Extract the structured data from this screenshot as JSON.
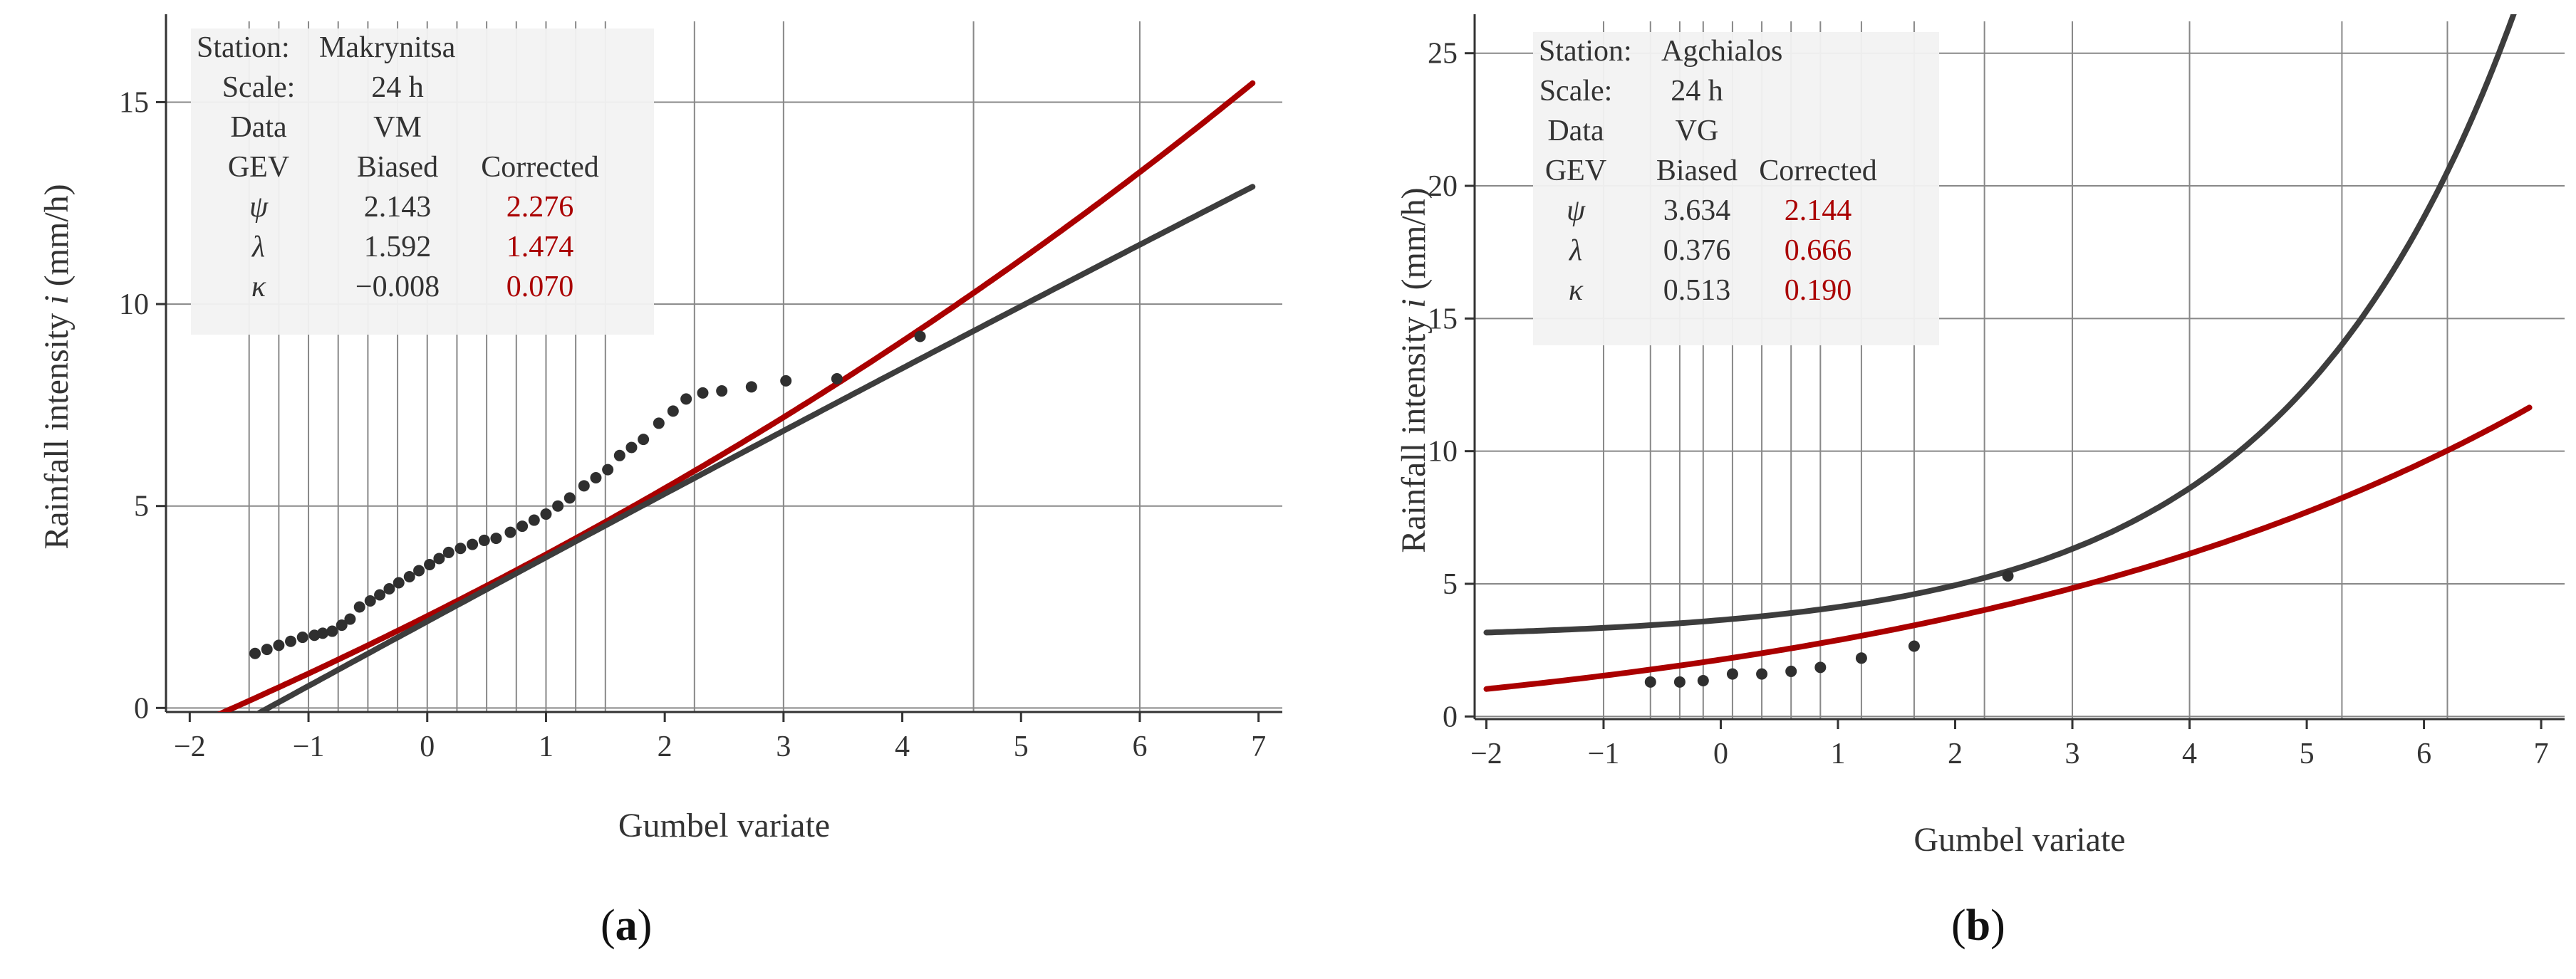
{
  "colors": {
    "biased": "#3d3d3d",
    "corrected": "#aa0000",
    "points": "#2f2f2f",
    "grid": "#888888",
    "axis": "#333333",
    "info_box": "#f2f2f2",
    "text": "#333333"
  },
  "chart_data": [
    {
      "type": "scatter",
      "panel_label": "a",
      "xlabel": "Gumbel variate",
      "ylabel_main": "Rainfall intensity ",
      "ylabel_var": "i",
      "ylabel_unit": " (mm/h)",
      "xlim": [
        -2.2,
        7.2
      ],
      "ylim": [
        -0.1,
        17.0
      ],
      "xticks": [
        -2,
        -1,
        0,
        1,
        2,
        3,
        4,
        5,
        6,
        7
      ],
      "xtick_labels": [
        "−2",
        "−1",
        "0",
        "1",
        "2",
        "3",
        "4",
        "5",
        "6",
        "7"
      ],
      "yticks": [
        0,
        5,
        10,
        15
      ],
      "ytick_labels": [
        "0",
        "5",
        "10",
        "15"
      ],
      "grid": true,
      "vertical_gridlines": [
        -1.5,
        -1.25,
        -1.0,
        -0.75,
        -0.5,
        -0.25,
        0,
        0.25,
        0.5,
        0.75,
        1.0,
        1.25,
        1.5,
        2.25,
        3.0,
        4.6,
        6.0
      ],
      "horizontal_gridlines": [
        0,
        5,
        10,
        15
      ],
      "info": {
        "station_label": "Station:",
        "station": "Makrynitsa",
        "scale_label": "Scale:",
        "scale": "24 h",
        "data_label": "Data",
        "data": "VM",
        "model_label": "GEV",
        "biased_header": "Biased",
        "corrected_header": "Corrected",
        "params": [
          {
            "symbol": "ψ",
            "biased": "2.143",
            "corrected": "2.276"
          },
          {
            "symbol": "λ",
            "biased": "1.592",
            "corrected": "1.474"
          },
          {
            "symbol": "κ",
            "biased": "−0.008",
            "corrected": "0.070"
          }
        ]
      },
      "series": [
        {
          "name": "Corrected",
          "kind": "gev_curve",
          "psi": 2.276,
          "lambda": 1.474,
          "kappa": 0.07,
          "x_range": [
            -2.0,
            6.95
          ]
        },
        {
          "name": "Biased",
          "kind": "gev_curve",
          "psi": 2.143,
          "lambda": 1.592,
          "kappa": -0.008,
          "x_range": [
            -2.0,
            6.95
          ]
        },
        {
          "name": "Observations",
          "kind": "points",
          "x": [
            -1.45,
            -1.35,
            -1.25,
            -1.15,
            -1.05,
            -0.95,
            -0.88,
            -0.8,
            -0.72,
            -0.65,
            -0.57,
            -0.48,
            -0.4,
            -0.32,
            -0.24,
            -0.15,
            -0.07,
            0.02,
            0.1,
            0.18,
            0.28,
            0.38,
            0.48,
            0.58,
            0.7,
            0.8,
            0.9,
            1.0,
            1.1,
            1.2,
            1.32,
            1.42,
            1.52,
            1.62,
            1.72,
            1.82,
            1.95,
            2.07,
            2.18,
            2.32,
            2.48,
            2.73,
            3.02,
            3.45,
            4.15
          ],
          "y": [
            1.35,
            1.45,
            1.55,
            1.65,
            1.75,
            1.8,
            1.85,
            1.9,
            2.05,
            2.2,
            2.5,
            2.65,
            2.8,
            2.95,
            3.1,
            3.25,
            3.4,
            3.55,
            3.7,
            3.85,
            3.95,
            4.05,
            4.15,
            4.2,
            4.35,
            4.5,
            4.65,
            4.8,
            5.0,
            5.2,
            5.5,
            5.7,
            5.9,
            6.25,
            6.45,
            6.65,
            7.05,
            7.35,
            7.65,
            7.8,
            7.85,
            7.95,
            8.1,
            8.15,
            9.2
          ]
        }
      ]
    },
    {
      "type": "scatter",
      "panel_label": "b",
      "xlabel": "Gumbel variate",
      "ylabel_main": "Rainfall intensity ",
      "ylabel_var": "i",
      "ylabel_unit": " (mm/h)",
      "xlim": [
        -2.1,
        7.2
      ],
      "ylim": [
        -0.1,
        26.2
      ],
      "xticks": [
        -2,
        -1,
        0,
        1,
        2,
        3,
        4,
        5,
        6,
        7
      ],
      "xtick_labels": [
        "−2",
        "−1",
        "0",
        "1",
        "2",
        "3",
        "4",
        "5",
        "6",
        "7"
      ],
      "yticks": [
        0,
        5,
        10,
        15,
        20,
        25
      ],
      "ytick_labels": [
        "0",
        "5",
        "10",
        "15",
        "20",
        "25"
      ],
      "grid": true,
      "vertical_gridlines": [
        -1.0,
        -0.6,
        -0.35,
        -0.15,
        0.1,
        0.35,
        0.6,
        0.85,
        1.2,
        1.65,
        2.25,
        3.0,
        4.0,
        5.3,
        6.2
      ],
      "horizontal_gridlines": [
        0,
        5,
        10,
        15,
        20,
        25
      ],
      "info": {
        "station_label": "Station:",
        "station": "Agchialos",
        "scale_label": "Scale:",
        "scale": "24 h",
        "data_label": "Data",
        "data": "VG",
        "model_label": "GEV",
        "biased_header": "Biased",
        "corrected_header": "Corrected",
        "params": [
          {
            "symbol": "ψ",
            "biased": "3.634",
            "corrected": "2.144"
          },
          {
            "symbol": "λ",
            "biased": "0.376",
            "corrected": "0.666"
          },
          {
            "symbol": "κ",
            "biased": "0.513",
            "corrected": "0.190"
          }
        ]
      },
      "series": [
        {
          "name": "Corrected",
          "kind": "gev_curve",
          "psi": 2.144,
          "lambda": 0.666,
          "kappa": 0.19,
          "x_range": [
            -2.0,
            6.9
          ]
        },
        {
          "name": "Biased",
          "kind": "gev_curve",
          "psi": 3.634,
          "lambda": 0.376,
          "kappa": 0.513,
          "x_range": [
            -2.0,
            6.9
          ]
        },
        {
          "name": "Observations",
          "kind": "points",
          "x": [
            -0.6,
            -0.35,
            -0.15,
            0.1,
            0.35,
            0.6,
            0.85,
            1.2,
            1.65,
            2.45
          ],
          "y": [
            1.3,
            1.3,
            1.35,
            1.6,
            1.6,
            1.7,
            1.85,
            2.2,
            2.65,
            5.3
          ]
        }
      ]
    }
  ]
}
